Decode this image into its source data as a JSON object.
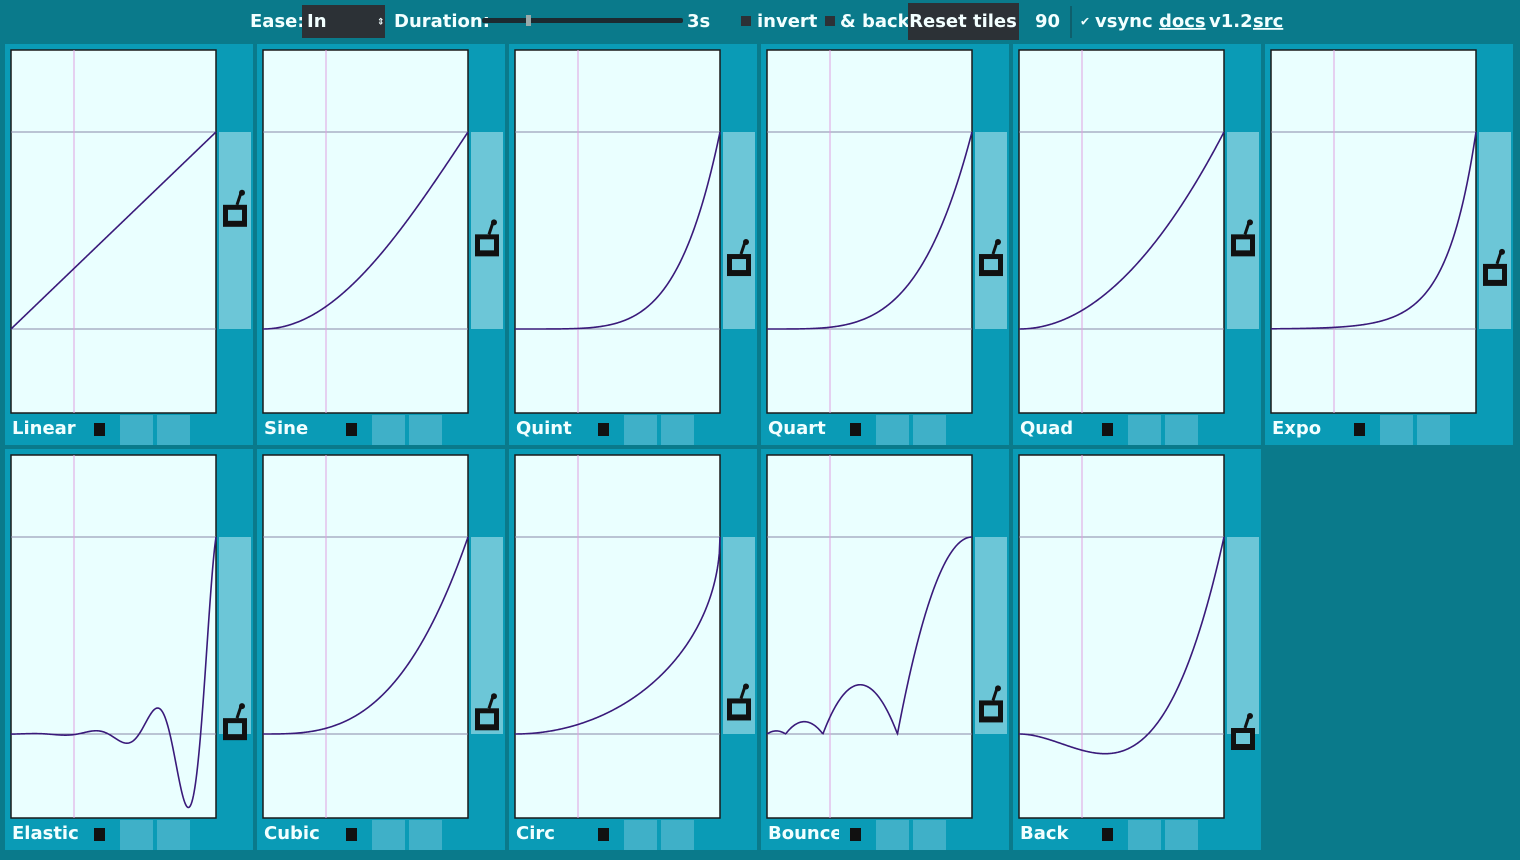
{
  "toolbar": {
    "ease_label": "Ease:",
    "ease_value": "In",
    "duration_label": "Duration:",
    "duration_value": "3s",
    "invert": "invert",
    "and_back": "& back",
    "reset": "Reset tiles",
    "fps": "90",
    "vsync": "vsync",
    "docs": "docs",
    "version": "v1.2",
    "src": "src"
  },
  "tiles": [
    {
      "label": "Linear"
    },
    {
      "label": "Sine"
    },
    {
      "label": "Quint"
    },
    {
      "label": "Quart"
    },
    {
      "label": "Quad"
    },
    {
      "label": "Expo"
    },
    {
      "label": "Elastic"
    },
    {
      "label": "Cubic"
    },
    {
      "label": "Circ"
    },
    {
      "label": "Bounce"
    },
    {
      "label": "Back"
    }
  ]
}
